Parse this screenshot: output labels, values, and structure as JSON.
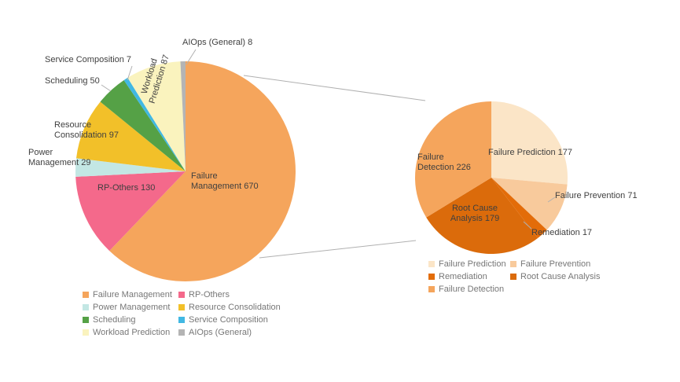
{
  "chart_data": [
    {
      "id": "main_pie",
      "type": "pie",
      "start_angle_deg": 0,
      "direction": "clockwise",
      "legend_position": "bottom-left",
      "slices": [
        {
          "label": "Failure Management",
          "value": 670,
          "color": "#F5A55C"
        },
        {
          "label": "RP-Others",
          "value": 130,
          "color": "#F4698B"
        },
        {
          "label": "Power Management",
          "value": 29,
          "color": "#C3E7E4"
        },
        {
          "label": "Resource Consolidation",
          "value": 97,
          "color": "#F2C029"
        },
        {
          "label": "Scheduling",
          "value": 50,
          "color": "#55A146"
        },
        {
          "label": "Service Composition",
          "value": 7,
          "color": "#41B8E3"
        },
        {
          "label": "Workload Prediction",
          "value": 87,
          "color": "#FAF3BE"
        },
        {
          "label": "AIOps (General)",
          "value": 8,
          "color": "#B4B4B4"
        }
      ]
    },
    {
      "id": "failure_management_breakdown_pie",
      "type": "pie",
      "start_angle_deg": 0,
      "direction": "clockwise",
      "legend_position": "bottom-right",
      "slices": [
        {
          "label": "Failure Prediction",
          "value": 177,
          "color": "#FBE5C7"
        },
        {
          "label": "Failure Prevention",
          "value": 71,
          "color": "#F8CA9C"
        },
        {
          "label": "Remediation",
          "value": 17,
          "color": "#E36C09"
        },
        {
          "label": "Root Cause Analysis",
          "value": 179,
          "color": "#DB6B0B"
        },
        {
          "label": "Failure Detection",
          "value": 226,
          "color": "#F5A55C"
        }
      ]
    }
  ],
  "annotations": {
    "left": {
      "aiops": "AIOps (General) 8",
      "service": "Service Composition 7",
      "scheduling": "Scheduling 50",
      "workload": "Workload\nPrediction 87",
      "resource": "Resource\nConsolidation 97",
      "power": "Power\nManagement 29",
      "rp_others": "RP-Others 130",
      "failure_mgmt": "Failure\nManagement 670"
    },
    "right": {
      "failure_detection": "Failure\nDetection 226",
      "failure_prediction": "Failure Prediction 177",
      "failure_prevention": "Failure Prevention 71",
      "remediation": "Remediation 17",
      "root_cause": "Root Cause\nAnalysis 179"
    }
  }
}
